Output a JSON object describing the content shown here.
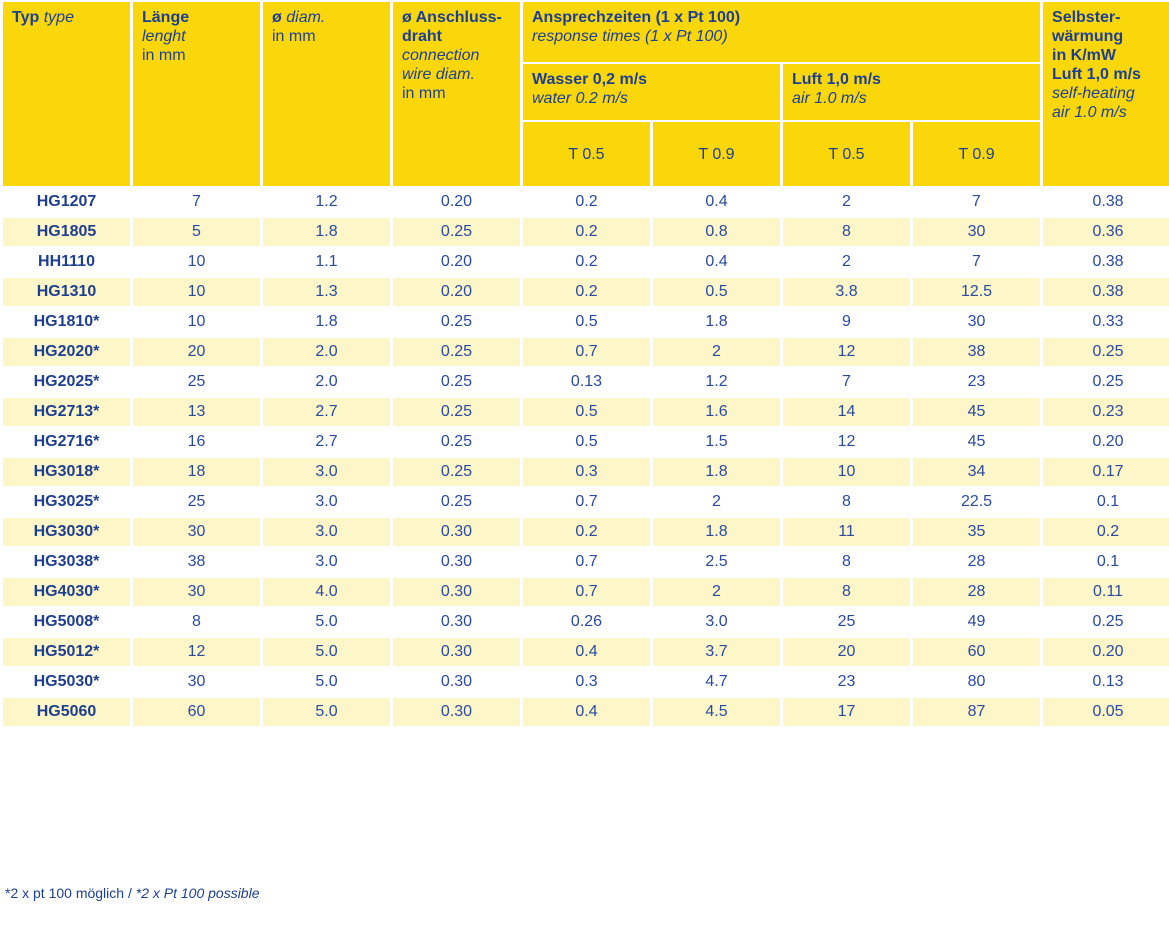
{
  "header": {
    "typ": {
      "de": "Typ",
      "en": "type"
    },
    "laenge": {
      "de": "Länge",
      "en": "lenght",
      "unit": "in mm"
    },
    "diam": {
      "de": "ø",
      "en": "diam.",
      "unit": "in mm"
    },
    "wire": {
      "de1": "ø Anschluss-",
      "de2": "draht",
      "en1": "connection",
      "en2": "wire diam.",
      "unit": "in mm"
    },
    "response": {
      "de": "Ansprechzeiten (1 x Pt 100)",
      "en": "response times (1 x Pt 100)"
    },
    "water": {
      "de": "Wasser 0,2 m/s",
      "en": "water 0.2 m/s"
    },
    "air": {
      "de": "Luft 1,0 m/s",
      "en": "air 1.0 m/s"
    },
    "t05": "T 0.5",
    "t09": "T 0.9",
    "selfheat": {
      "de1": "Selbster-",
      "de2": "wärmung",
      "de3": "in K/mW",
      "de4": "Luft 1,0 m/s",
      "en1": "self-heating",
      "en2": "air 1.0 m/s"
    }
  },
  "rows": [
    [
      "HG1207",
      "7",
      "1.2",
      "0.20",
      "0.2",
      "0.4",
      "2",
      "7",
      "0.38"
    ],
    [
      "HG1805",
      "5",
      "1.8",
      "0.25",
      "0.2",
      "0.8",
      "8",
      "30",
      "0.36"
    ],
    [
      "HH1110",
      "10",
      "1.1",
      "0.20",
      "0.2",
      "0.4",
      "2",
      "7",
      "0.38"
    ],
    [
      "HG1310",
      "10",
      "1.3",
      "0.20",
      "0.2",
      "0.5",
      "3.8",
      "12.5",
      "0.38"
    ],
    [
      "HG1810*",
      "10",
      "1.8",
      "0.25",
      "0.5",
      "1.8",
      "9",
      "30",
      "0.33"
    ],
    [
      "HG2020*",
      "20",
      "2.0",
      "0.25",
      "0.7",
      "2",
      "12",
      "38",
      "0.25"
    ],
    [
      "HG2025*",
      "25",
      "2.0",
      "0.25",
      "0.13",
      "1.2",
      "7",
      "23",
      "0.25"
    ],
    [
      "HG2713*",
      "13",
      "2.7",
      "0.25",
      "0.5",
      "1.6",
      "14",
      "45",
      "0.23"
    ],
    [
      "HG2716*",
      "16",
      "2.7",
      "0.25",
      "0.5",
      "1.5",
      "12",
      "45",
      "0.20"
    ],
    [
      "HG3018*",
      "18",
      "3.0",
      "0.25",
      "0.3",
      "1.8",
      "10",
      "34",
      "0.17"
    ],
    [
      "HG3025*",
      "25",
      "3.0",
      "0.25",
      "0.7",
      "2",
      "8",
      "22.5",
      "0.1"
    ],
    [
      "HG3030*",
      "30",
      "3.0",
      "0.30",
      "0.2",
      "1.8",
      "11",
      "35",
      "0.2"
    ],
    [
      "HG3038*",
      "38",
      "3.0",
      "0.30",
      "0.7",
      "2.5",
      "8",
      "28",
      "0.1"
    ],
    [
      "HG4030*",
      "30",
      "4.0",
      "0.30",
      "0.7",
      "2",
      "8",
      "28",
      "0.11"
    ],
    [
      "HG5008*",
      "8",
      "5.0",
      "0.30",
      "0.26",
      "3.0",
      "25",
      "49",
      "0.25"
    ],
    [
      "HG5012*",
      "12",
      "5.0",
      "0.30",
      "0.4",
      "3.7",
      "20",
      "60",
      "0.20"
    ],
    [
      "HG5030*",
      "30",
      "5.0",
      "0.30",
      "0.3",
      "4.7",
      "23",
      "80",
      "0.13"
    ],
    [
      "HG5060",
      "60",
      "5.0",
      "0.30",
      "0.4",
      "4.5",
      "17",
      "87",
      "0.05"
    ]
  ],
  "footnote": {
    "de": "*2 x pt 100 möglich /",
    "en": "*2 x Pt 100 possible"
  }
}
